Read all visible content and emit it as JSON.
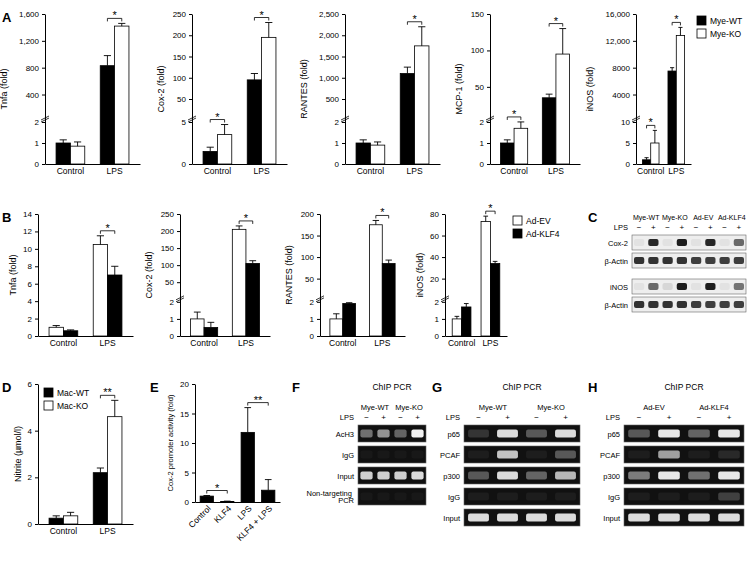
{
  "chart_data": [
    {
      "type": "bar",
      "panel": "A",
      "y_label": "Tnfa (fold)",
      "categories": [
        "Control",
        "LPS"
      ],
      "series": [
        {
          "color": "#000000",
          "values": [
            1.0,
            830
          ],
          "errors": [
            0.15,
            150
          ]
        },
        {
          "color": "#ffffff",
          "values": [
            0.85,
            1420
          ],
          "errors": [
            0.2,
            40
          ]
        }
      ],
      "ylim": [
        0,
        1600
      ],
      "yticks": [
        0,
        1,
        2,
        400,
        800,
        {
          "value": 1200,
          "label": "1,200"
        },
        {
          "value": 1600,
          "label": "1,600"
        }
      ],
      "significance": [
        {
          "category": "LPS",
          "label": "*"
        }
      ]
    },
    {
      "type": "bar",
      "y_label": "Cox-2 (fold)",
      "categories": [
        "Control",
        "LPS"
      ],
      "series": [
        {
          "color": "#000000",
          "values": [
            1.5,
            95
          ],
          "errors": [
            0.5,
            15
          ]
        },
        {
          "color": "#ffffff",
          "values": [
            3.5,
            195
          ],
          "errors": [
            1.2,
            35
          ]
        }
      ],
      "ylim": [
        0,
        250
      ],
      "yticks": [
        0,
        5,
        50,
        100,
        150,
        200,
        250
      ],
      "significance": [
        {
          "category": "Control",
          "label": "*"
        },
        {
          "category": "LPS",
          "label": "*"
        }
      ]
    },
    {
      "type": "bar",
      "y_label": "RANTES (fold)",
      "categories": [
        "Control",
        "LPS"
      ],
      "series": [
        {
          "color": "#000000",
          "values": [
            1.0,
            1100
          ],
          "errors": [
            0.15,
            150
          ]
        },
        {
          "color": "#ffffff",
          "values": [
            0.9,
            1750
          ],
          "errors": [
            0.15,
            450
          ]
        }
      ],
      "ylim": [
        0,
        2500
      ],
      "yticks": [
        0,
        1,
        2,
        500,
        {
          "value": 1000,
          "label": "1,000"
        },
        {
          "value": 1500,
          "label": "1,500"
        },
        {
          "value": 2000,
          "label": "2,000"
        },
        {
          "value": 2500,
          "label": "2,500"
        }
      ],
      "significance": [
        {
          "category": "LPS",
          "label": "*"
        }
      ]
    },
    {
      "type": "bar",
      "y_label": "MCP-1 (fold)",
      "categories": [
        "Control",
        "LPS"
      ],
      "series": [
        {
          "color": "#000000",
          "values": [
            1.0,
            35
          ],
          "errors": [
            0.15,
            5
          ]
        },
        {
          "color": "#ffffff",
          "values": [
            1.7,
            95
          ],
          "errors": [
            0.4,
            35
          ]
        }
      ],
      "ylim": [
        0,
        150
      ],
      "yticks": [
        0,
        1,
        2,
        50,
        100,
        150
      ],
      "significance": [
        {
          "category": "Control",
          "label": "*"
        },
        {
          "category": "LPS",
          "label": "*"
        }
      ]
    },
    {
      "type": "bar",
      "y_label": "iNOS (fold)",
      "categories": [
        "Control",
        "LPS"
      ],
      "series": [
        {
          "name": "Mye-WT",
          "color": "#000000",
          "values": [
            1.0,
            7500
          ],
          "errors": [
            0.5,
            500
          ]
        },
        {
          "name": "Mye-KO",
          "color": "#ffffff",
          "values": [
            5,
            12800
          ],
          "errors": [
            3,
            1200
          ]
        }
      ],
      "ylim": [
        0,
        16000
      ],
      "yticks": [
        0,
        5,
        10,
        4000,
        8000,
        {
          "value": 12000,
          "label": "12,000"
        },
        {
          "value": 16000,
          "label": "16,000"
        }
      ],
      "legend": "right",
      "significance": [
        {
          "category": "Control",
          "label": "*"
        },
        {
          "category": "LPS",
          "label": "*"
        }
      ]
    },
    {
      "type": "bar",
      "panel": "B",
      "y_label": "Tnfa (fold)",
      "categories": [
        "Control",
        "LPS"
      ],
      "series": [
        {
          "color": "#ffffff",
          "values": [
            1.0,
            10.5
          ],
          "errors": [
            0.2,
            1.0
          ]
        },
        {
          "color": "#000000",
          "values": [
            0.6,
            7.0
          ],
          "errors": [
            0.1,
            1.0
          ]
        }
      ],
      "ylim": [
        0,
        14
      ],
      "yticks": [
        0,
        2,
        4,
        6,
        8,
        10,
        12,
        14
      ],
      "significance": [
        {
          "category": "LPS",
          "label": "*"
        }
      ]
    },
    {
      "type": "bar",
      "y_label": "Cox-2 (fold)",
      "categories": [
        "Control",
        "LPS"
      ],
      "series": [
        {
          "color": "#ffffff",
          "values": [
            1.0,
            205
          ],
          "errors": [
            0.4,
            10
          ]
        },
        {
          "color": "#000000",
          "values": [
            0.5,
            105
          ],
          "errors": [
            0.3,
            8
          ]
        }
      ],
      "ylim": [
        0,
        250
      ],
      "yticks": [
        0,
        1,
        2,
        50,
        100,
        150,
        200,
        250
      ],
      "significance": [
        {
          "category": "LPS",
          "label": "*"
        }
      ]
    },
    {
      "type": "bar",
      "y_label": "RANTES (fold)",
      "categories": [
        "Control",
        "LPS"
      ],
      "series": [
        {
          "color": "#ffffff",
          "values": [
            1.0,
            175
          ],
          "errors": [
            0.3,
            10
          ]
        },
        {
          "color": "#000000",
          "values": [
            1.9,
            85
          ],
          "errors": [
            0.05,
            8
          ]
        }
      ],
      "ylim": [
        0,
        200
      ],
      "yticks": [
        0,
        1,
        2,
        50,
        100,
        150,
        200
      ],
      "significance": [
        {
          "category": "LPS",
          "label": "*"
        }
      ]
    },
    {
      "type": "bar",
      "y_label": "iNOS (fold)",
      "categories": [
        "Control",
        "LPS"
      ],
      "series": [
        {
          "name": "Ad-EV",
          "color": "#ffffff",
          "values": [
            1.0,
            73
          ],
          "errors": [
            0.15,
            5
          ]
        },
        {
          "name": "Ad-KLF4",
          "color": "#000000",
          "values": [
            1.7,
            34
          ],
          "errors": [
            0.2,
            2
          ]
        }
      ],
      "ylim": [
        0,
        80
      ],
      "yticks": [
        0,
        1,
        2,
        20,
        40,
        60,
        80
      ],
      "legend": "right",
      "significance": [
        {
          "category": "LPS",
          "label": "*"
        }
      ]
    },
    {
      "type": "blot",
      "panel": "C",
      "groups": [
        "Mye-WT",
        "Mye-KO",
        "Ad-EV",
        "Ad-KLF4"
      ],
      "treatment_label": "LPS",
      "treatment": [
        "−",
        "+",
        "−",
        "+",
        "−",
        "+",
        "−",
        "+"
      ],
      "series": [
        {
          "name": "Cox-2",
          "values": [
            0.05,
            0.9,
            0.05,
            0.95,
            0.05,
            0.9,
            0.05,
            0.6
          ]
        },
        {
          "name": "β-Actin",
          "values": [
            0.85,
            0.85,
            0.85,
            0.85,
            0.8,
            0.8,
            0.8,
            0.8
          ]
        },
        {
          "name": "iNOS",
          "values": [
            0.05,
            0.6,
            0.1,
            0.95,
            0.05,
            0.95,
            0.05,
            0.55
          ]
        },
        {
          "name": "β-Actin",
          "values": [
            0.85,
            0.85,
            0.85,
            0.85,
            0.8,
            0.8,
            0.8,
            0.8
          ]
        }
      ]
    },
    {
      "type": "bar",
      "panel": "D",
      "y_label": "Nitrite (µmol/l)",
      "categories": [
        "Control",
        "LPS"
      ],
      "series": [
        {
          "name": "Mac-WT",
          "color": "#000000",
          "values": [
            0.25,
            2.2
          ],
          "errors": [
            0.1,
            0.2
          ]
        },
        {
          "name": "Mac-KO",
          "color": "#ffffff",
          "values": [
            0.35,
            4.6
          ],
          "errors": [
            0.15,
            0.7
          ]
        }
      ],
      "ylim": [
        0,
        6
      ],
      "yticks": [
        0,
        2,
        4,
        6
      ],
      "legend": "top-left",
      "significance": [
        {
          "category": "LPS",
          "label": "**"
        }
      ]
    },
    {
      "type": "bar",
      "panel": "E",
      "y_label": "Cox-2 promoter activity (fold)",
      "categories": [
        "Control",
        "KLF4",
        "LPS",
        "KLF4 + LPS"
      ],
      "values": [
        1.0,
        0.1,
        11.8,
        2.0
      ],
      "errors": [
        0.1,
        0.05,
        4.2,
        1.8
      ],
      "color": "#000000",
      "ylim": [
        0,
        20
      ],
      "yticks": [
        0,
        5,
        10,
        15,
        20
      ],
      "significance": [
        {
          "between": [
            "Control",
            "KLF4"
          ],
          "label": "*"
        },
        {
          "between": [
            "LPS",
            "KLF4 + LPS"
          ],
          "label": "**"
        }
      ]
    },
    {
      "type": "gel",
      "panel": "F",
      "title": "ChIP PCR",
      "groups": [
        "Mye-WT",
        "Mye-KO"
      ],
      "treatment_label": "LPS",
      "treatment": [
        "−",
        "+",
        "−",
        "+"
      ],
      "series": [
        {
          "name": "AcH3",
          "values": [
            0.4,
            0.55,
            0.35,
            0.95
          ]
        },
        {
          "name": "IgG",
          "values": [
            0.03,
            0.03,
            0.03,
            0.03
          ]
        },
        {
          "name": "Input",
          "values": [
            0.8,
            0.8,
            0.8,
            0.85
          ]
        },
        {
          "name": "Non-targeting PCR",
          "values": [
            0.03,
            0.03,
            0.03,
            0.03
          ]
        }
      ]
    },
    {
      "type": "gel",
      "panel": "G",
      "title": "ChIP PCR",
      "groups": [
        "Mye-WT",
        "Mye-KO"
      ],
      "treatment_label": "LPS",
      "treatment": [
        "−",
        "+",
        "−",
        "+"
      ],
      "series": [
        {
          "name": "p65",
          "values": [
            0.15,
            0.85,
            0.3,
            0.85
          ]
        },
        {
          "name": "PCAF",
          "values": [
            0.05,
            0.75,
            0.05,
            0.3
          ]
        },
        {
          "name": "p300",
          "values": [
            0.3,
            0.85,
            0.35,
            0.7
          ]
        },
        {
          "name": "IgG",
          "values": [
            0.05,
            0.05,
            0.05,
            0.05
          ]
        },
        {
          "name": "Input",
          "values": [
            0.85,
            0.85,
            0.85,
            0.85
          ]
        }
      ]
    },
    {
      "type": "gel",
      "panel": "H",
      "title": "ChIP PCR",
      "groups": [
        "Ad-EV",
        "Ad-KLF4"
      ],
      "treatment_label": "LPS",
      "treatment": [
        "−",
        "+",
        "−",
        "+"
      ],
      "series": [
        {
          "name": "p65",
          "values": [
            0.3,
            0.9,
            0.35,
            0.9
          ]
        },
        {
          "name": "PCAF",
          "values": [
            0.05,
            0.6,
            0.05,
            0.1
          ]
        },
        {
          "name": "p300",
          "values": [
            0.45,
            0.9,
            0.4,
            0.9
          ]
        },
        {
          "name": "IgG",
          "values": [
            0.05,
            0.05,
            0.05,
            0.2
          ]
        },
        {
          "name": "Input",
          "values": [
            0.85,
            0.85,
            0.85,
            0.85
          ]
        }
      ]
    }
  ]
}
